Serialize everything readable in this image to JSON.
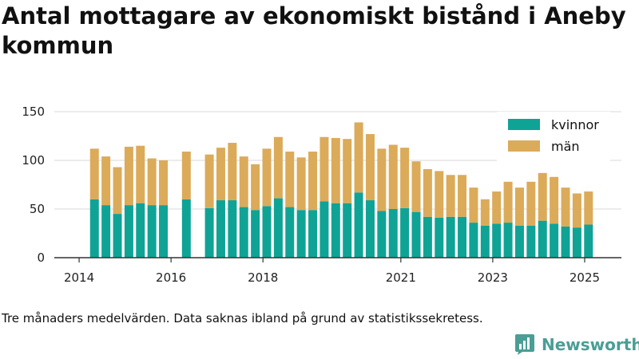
{
  "page": {
    "title": "Antal mottagare av ekonomiskt bistånd i Aneby kommun",
    "note": "Tre månaders medelvärden. Data saknas ibland på grund av statistikssekretess.",
    "brand": "Newsworthy"
  },
  "colors": {
    "kvinnor": "#0fa396",
    "man": "#dbab5a",
    "axis": "#333333",
    "grid": "#d9d9d9",
    "brand": "#4a9e95"
  },
  "icons": {
    "brand": "bar-chart-speech-bubble-icon"
  },
  "chart_data": {
    "type": "bar",
    "stacked": true,
    "x": [
      "2014-04",
      "2014-07",
      "2014-10",
      "2015-01",
      "2015-04",
      "2015-07",
      "2015-10",
      "2016-01",
      "2016-04",
      "2016-07",
      "2016-10",
      "2017-01",
      "2017-04",
      "2017-07",
      "2017-10",
      "2018-01",
      "2018-04",
      "2018-07",
      "2018-10",
      "2019-01",
      "2019-04",
      "2019-07",
      "2019-10",
      "2020-01",
      "2020-04",
      "2020-07",
      "2020-10",
      "2021-01",
      "2021-04",
      "2021-07",
      "2021-10",
      "2022-01",
      "2022-04",
      "2022-07",
      "2022-10",
      "2023-01",
      "2023-04",
      "2023-07",
      "2023-10",
      "2024-01",
      "2024-04",
      "2024-07",
      "2024-10",
      "2025-01"
    ],
    "series": [
      {
        "name": "kvinnor",
        "values": [
          60,
          54,
          45,
          54,
          56,
          54,
          54,
          null,
          60,
          null,
          51,
          59,
          59,
          52,
          49,
          53,
          61,
          52,
          49,
          49,
          58,
          56,
          56,
          67,
          59,
          48,
          50,
          51,
          47,
          42,
          41,
          42,
          42,
          36,
          33,
          35,
          36,
          33,
          33,
          38,
          35,
          32,
          31,
          34
        ]
      },
      {
        "name": "män",
        "values": [
          52,
          50,
          48,
          60,
          59,
          48,
          46,
          null,
          49,
          null,
          55,
          54,
          59,
          52,
          47,
          59,
          63,
          57,
          54,
          60,
          66,
          67,
          66,
          72,
          68,
          64,
          66,
          62,
          52,
          49,
          48,
          43,
          43,
          36,
          27,
          33,
          42,
          39,
          45,
          49,
          48,
          40,
          35,
          34
        ]
      }
    ],
    "x_ticks": [
      "2014",
      "2016",
      "2018",
      "2021",
      "2023",
      "2025"
    ],
    "y_ticks": [
      0,
      50,
      100,
      150
    ],
    "ylim": [
      0,
      150
    ],
    "legend": {
      "position": "top-right",
      "entries": [
        "kvinnor",
        "män"
      ]
    },
    "grid": true
  }
}
